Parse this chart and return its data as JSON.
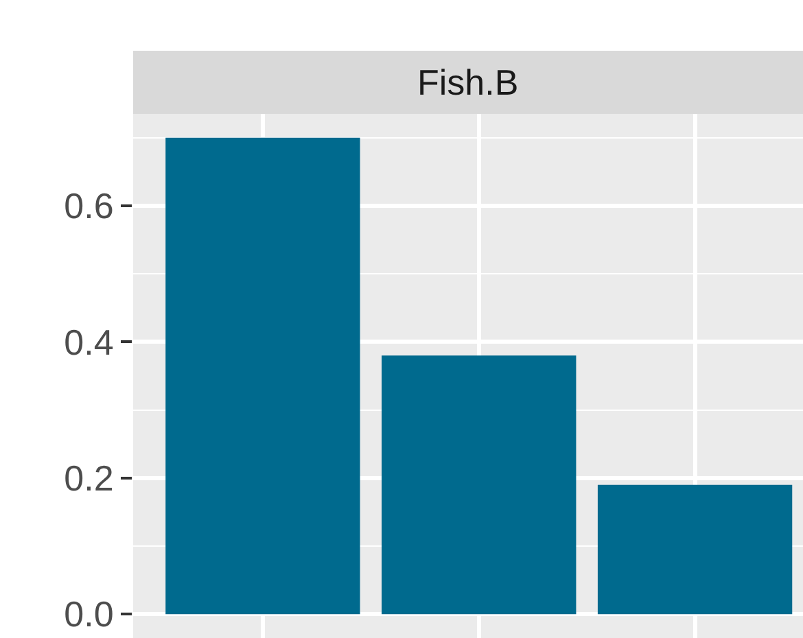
{
  "chart_data": {
    "type": "bar",
    "title": "Fish.B",
    "categories": [
      null,
      null,
      null
    ],
    "series": [
      {
        "color": "#006a8e",
        "values": [
          0.7,
          0.38,
          0.19
        ]
      }
    ],
    "ylim": [
      -0.035,
      0.735
    ],
    "yticks": [
      {
        "value": 0,
        "label": "0.0"
      },
      0.2,
      0.4,
      0.6
    ],
    "grid": true,
    "tick_labels": "y"
  }
}
